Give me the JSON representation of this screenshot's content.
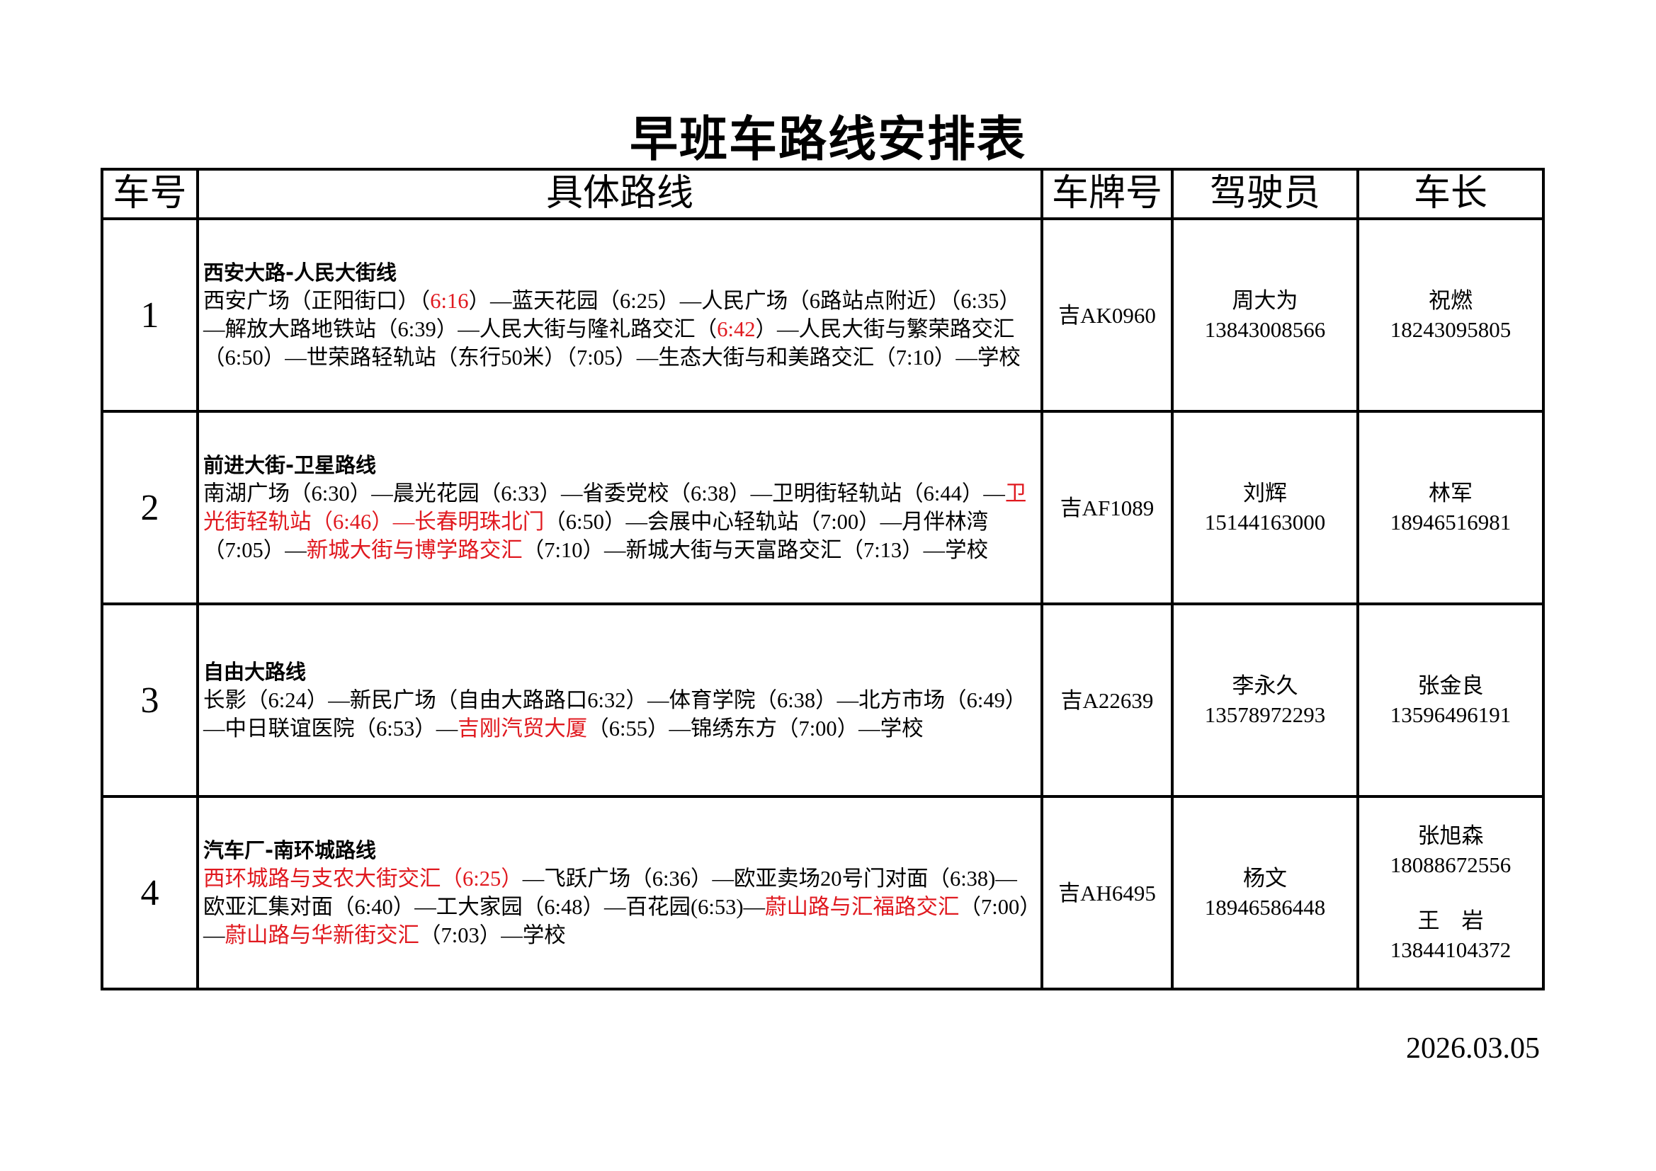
{
  "title": "早班车路线安排表",
  "headers": [
    "车号",
    "具体路线",
    "车牌号",
    "驾驶员",
    "车长"
  ],
  "rows": [
    {
      "number": "1",
      "route_name": "西安大路-人民大街线",
      "route_segments": [
        {
          "text": "西安广场（正阳街口）（",
          "red": false
        },
        {
          "text": "6:16",
          "red": true
        },
        {
          "text": "）—蓝天花园（6:25）—人民广场（6路站点附近）（6:35）—解放大路地铁站（6:39）—人民大街与隆礼路交汇（",
          "red": false
        },
        {
          "text": "6:42",
          "red": true
        },
        {
          "text": "）—人民大街与繁荣路交汇（6:50）—世荣路轻轨站（东行50米）（7:05）—生态大街与和美路交汇（7:10）—学校",
          "red": false
        }
      ],
      "plate": "吉AK0960",
      "driver": {
        "name": "周大为",
        "phone": "13843008566"
      },
      "leaders": [
        {
          "name": "祝燃",
          "phone": "18243095805"
        }
      ]
    },
    {
      "number": "2",
      "route_name": "前进大街-卫星路线",
      "route_segments": [
        {
          "text": "南湖广场（6:30）—晨光花园（6:33）—省委党校（6:38）—卫明街轻轨站（6:44）—",
          "red": false
        },
        {
          "text": "卫光街轻轨站（6:46）—长春明珠北门",
          "red": true
        },
        {
          "text": "（6:50）—会展中心轻轨站（7:00）—月伴林湾（7:05）—",
          "red": false
        },
        {
          "text": "新城大街与博学路交汇",
          "red": true
        },
        {
          "text": "（7:10）—新城大街与天富路交汇（7:13）—学校",
          "red": false
        }
      ],
      "plate": "吉AF1089",
      "driver": {
        "name": "刘辉",
        "phone": "15144163000"
      },
      "leaders": [
        {
          "name": "林军",
          "phone": "18946516981"
        }
      ]
    },
    {
      "number": "3",
      "route_name": "自由大路线",
      "route_segments": [
        {
          "text": "长影（6:24）—新民广场（自由大路路口6:32）—体育学院（6:38）—北方市场（6:49）—中日联谊医院（6:53）—",
          "red": false
        },
        {
          "text": "吉刚汽贸大厦",
          "red": true
        },
        {
          "text": "（6:55）—锦绣东方（7:00）—学校",
          "red": false
        }
      ],
      "plate": "吉A22639",
      "driver": {
        "name": "李永久",
        "phone": "13578972293"
      },
      "leaders": [
        {
          "name": "张金良",
          "phone": "13596496191"
        }
      ]
    },
    {
      "number": "4",
      "route_name": "汽车厂-南环城路线",
      "route_segments": [
        {
          "text": "西环城路与支农大街交汇（6:25）",
          "red": true
        },
        {
          "text": "—飞跃广场（6:36）—欧亚卖场20号门对面（6:38)—欧亚汇集对面（6:40）—工大家园（6:48）—百花园(6:53)—",
          "red": false
        },
        {
          "text": "蔚山路与汇福路交汇",
          "red": true
        },
        {
          "text": "（7:00）—",
          "red": false
        },
        {
          "text": "蔚山路与华新街交汇",
          "red": true
        },
        {
          "text": "（7:03）—学校",
          "red": false
        }
      ],
      "plate": "吉AH6495",
      "driver": {
        "name": "杨文",
        "phone": "18946586448"
      },
      "leaders": [
        {
          "name": "张旭森",
          "phone": "18088672556"
        },
        {
          "name": "王　岩",
          "phone": "13844104372"
        }
      ]
    }
  ],
  "date": "2026.03.05",
  "colors": {
    "highlight": "#e0191f",
    "text": "#000000"
  }
}
